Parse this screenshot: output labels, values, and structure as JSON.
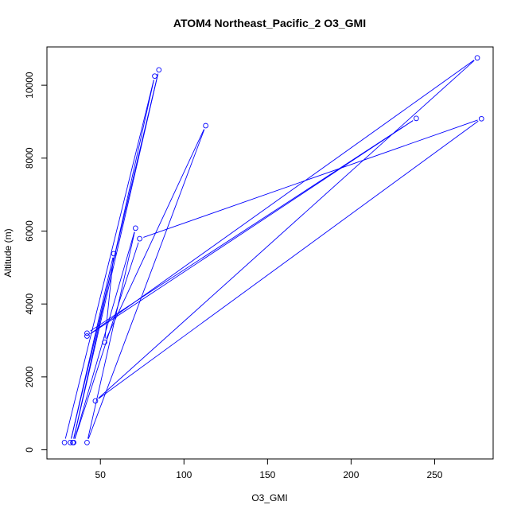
{
  "chart_data": {
    "type": "line",
    "title": "ATOM4 Northeast_Pacific_2 O3_GMI",
    "xlabel": "O3_GMI",
    "ylabel": "Altitude (m)",
    "xlim": [
      18,
      285
    ],
    "ylim": [
      -250,
      11050
    ],
    "x_ticks": [
      50,
      100,
      150,
      200,
      250
    ],
    "y_ticks": [
      0,
      2000,
      4000,
      6000,
      8000,
      10000
    ],
    "grid": false,
    "series": [
      {
        "color": "#0000ff",
        "marker": "open-circle",
        "points": [
          [
            28.5,
            200
          ],
          [
            82.5,
            10250
          ],
          [
            33.5,
            200
          ],
          [
            85,
            10420
          ],
          [
            32,
            200
          ],
          [
            58,
            5380
          ],
          [
            52.5,
            2950
          ],
          [
            113,
            8890
          ],
          [
            42,
            200
          ],
          [
            71,
            6080
          ],
          [
            34,
            200
          ],
          [
            73.5,
            5790
          ],
          [
            278,
            9080
          ],
          [
            47,
            1340
          ],
          [
            275.5,
            10750
          ],
          [
            42,
            3120
          ],
          [
            239,
            9090
          ],
          [
            42,
            3200
          ]
        ]
      }
    ]
  }
}
